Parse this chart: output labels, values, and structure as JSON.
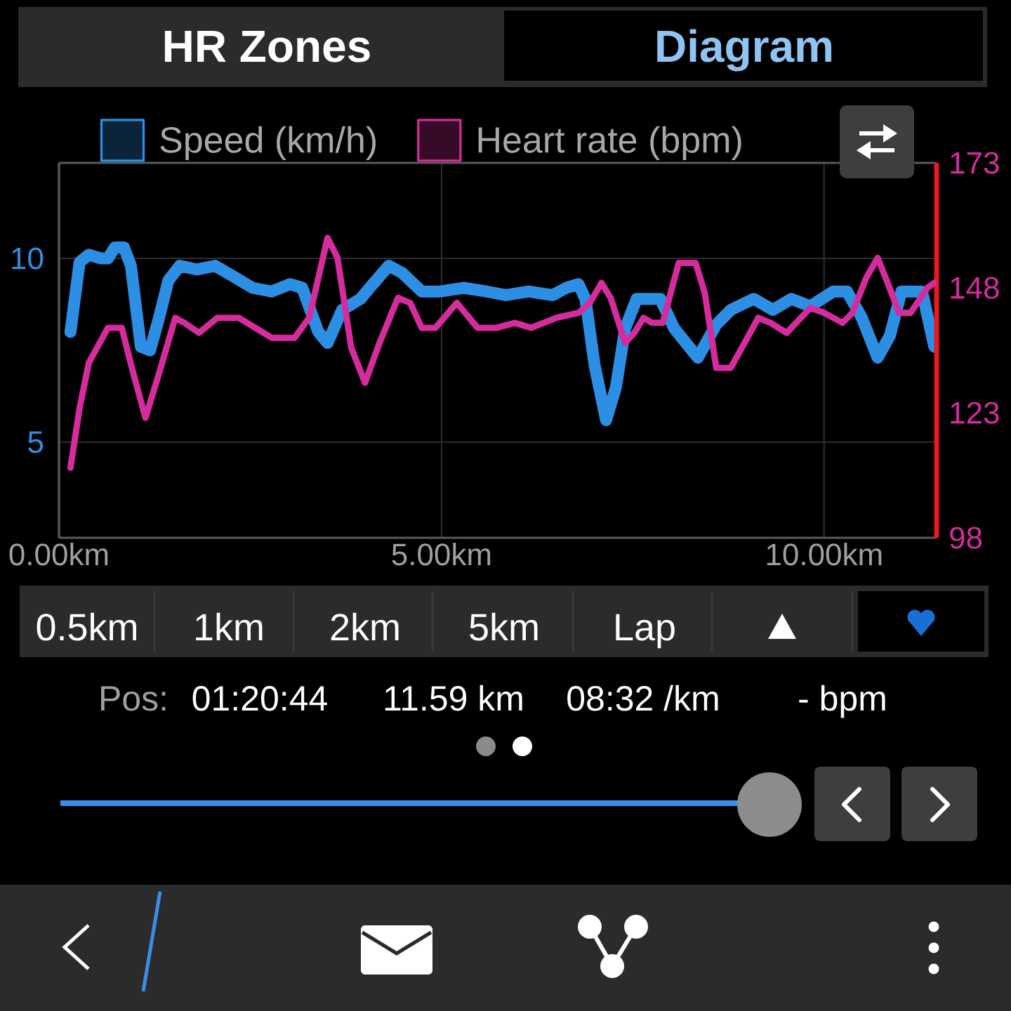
{
  "chart_data": {
    "type": "line",
    "annotations": [
      "HR Zones",
      "Diagram",
      "0.5km",
      "1km",
      "2km",
      "5km",
      "Lap",
      "Pos:",
      "01:20:44",
      "11.59 km",
      "08:32 /km",
      "- bpm"
    ],
    "series": [
      {
        "name": "Speed (km/h)",
        "color": "#2d8fe3",
        "x": [
          0.15,
          0.27,
          0.39,
          0.55,
          0.64,
          0.73,
          0.85,
          0.94,
          1.07,
          1.19,
          1.31,
          1.43,
          1.58,
          1.8,
          2.04,
          2.29,
          2.53,
          2.78,
          3.02,
          3.18,
          3.39,
          3.51,
          3.7,
          3.94,
          4.06,
          4.31,
          4.49,
          4.74,
          4.98,
          5.29,
          5.59,
          5.84,
          6.14,
          6.45,
          6.63,
          6.79,
          6.88,
          7.0,
          7.15,
          7.28,
          7.4,
          7.55,
          7.86,
          8.04,
          8.35,
          8.59,
          8.78,
          9.08,
          9.33,
          9.57,
          9.82,
          10.12,
          10.3,
          10.49,
          10.7,
          10.86,
          11.01,
          11.28,
          11.44
        ],
        "values": [
          8.0,
          9.9,
          10.1,
          10.0,
          10.0,
          10.3,
          10.3,
          9.8,
          7.6,
          7.5,
          8.4,
          9.4,
          9.8,
          9.7,
          9.8,
          9.5,
          9.2,
          9.1,
          9.3,
          9.2,
          8.0,
          7.7,
          8.6,
          8.9,
          9.2,
          9.8,
          9.6,
          9.1,
          9.1,
          9.2,
          9.1,
          9.0,
          9.1,
          9.0,
          9.2,
          9.3,
          8.9,
          7.1,
          5.6,
          6.5,
          8.1,
          8.9,
          8.9,
          8.1,
          7.3,
          8.2,
          8.6,
          8.9,
          8.6,
          8.9,
          8.7,
          9.1,
          9.1,
          8.4,
          7.3,
          7.9,
          9.1,
          9.1,
          7.6
        ]
      },
      {
        "name": "Heart rate (bpm)",
        "color": "#d42c9c",
        "axis": "y2",
        "x": [
          0.15,
          0.27,
          0.39,
          0.64,
          0.82,
          0.97,
          1.13,
          1.31,
          1.52,
          1.64,
          1.83,
          2.07,
          2.35,
          2.78,
          3.08,
          3.27,
          3.51,
          3.64,
          3.82,
          4.0,
          4.19,
          4.43,
          4.59,
          4.74,
          4.92,
          5.2,
          5.47,
          5.72,
          5.96,
          6.17,
          6.5,
          6.79,
          6.94,
          7.09,
          7.21,
          7.4,
          7.52,
          7.64,
          7.75,
          7.89,
          8.1,
          8.32,
          8.44,
          8.59,
          8.78,
          8.96,
          9.14,
          9.3,
          9.51,
          9.82,
          10.0,
          10.24,
          10.37,
          10.55,
          10.7,
          10.83,
          10.98,
          11.13,
          11.35,
          11.44
        ],
        "values": [
          112,
          124,
          133,
          140,
          140,
          131,
          122,
          131,
          142,
          141,
          139,
          142,
          142,
          138,
          138,
          142,
          158,
          154,
          136,
          129,
          137,
          146,
          145,
          140,
          140,
          145,
          140,
          140,
          141,
          140,
          142,
          143,
          145,
          149,
          146,
          137,
          139,
          142,
          141,
          141,
          153,
          153,
          147,
          132,
          132,
          137,
          142,
          141,
          139,
          144,
          143,
          141,
          143,
          150,
          154,
          149,
          143,
          143,
          148,
          149
        ]
      }
    ],
    "xlim": [
      0,
      11.47
    ],
    "xticks": [
      {
        "value": 0,
        "label": "0.00km"
      },
      {
        "value": 5,
        "label": "5.00km"
      },
      {
        "value": 10,
        "label": "10.00km"
      }
    ],
    "ylim": [
      2.4,
      12.6
    ],
    "yticks": [
      5,
      10
    ],
    "y2lim": [
      98,
      173
    ],
    "y2ticks": [
      98,
      123,
      148,
      173
    ],
    "grid": true,
    "legend": "top"
  }
}
